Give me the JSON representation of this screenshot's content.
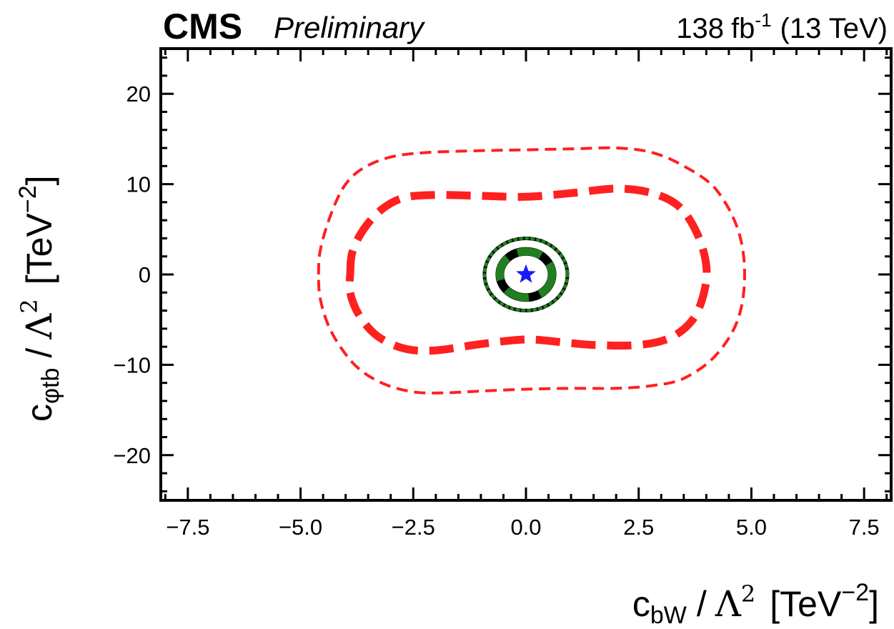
{
  "header": {
    "experiment": "CMS",
    "status": "Preliminary",
    "lumi_value": "138",
    "lumi_unit": "fb",
    "lumi_exp": "-1",
    "energy": "(13 TeV)"
  },
  "chart_data": {
    "type": "contour",
    "title": "",
    "xlabel": "c_bW / Λ^2 [TeV^-2]",
    "ylabel": "c_φtb / Λ^2 [TeV^-2]",
    "xlabel_parts": {
      "c": "c",
      "sub": "bW",
      "sep": "/",
      "lambda": "Λ",
      "pow": "2",
      "unit": "[TeV",
      "unit_exp": "−2",
      "close": "]"
    },
    "ylabel_parts": {
      "c": "c",
      "sub": "φtb",
      "sep": "/",
      "lambda": "Λ",
      "pow": "2",
      "unit": "[TeV",
      "unit_exp": "−2",
      "close": "]"
    },
    "xlim": [
      -8.1,
      8.1
    ],
    "ylim": [
      -25,
      25
    ],
    "xticks": [
      -7.5,
      -5.0,
      -2.5,
      0.0,
      2.5,
      5.0,
      7.5
    ],
    "xtick_labels": [
      "−7.5",
      "−5.0",
      "−2.5",
      "0.0",
      "2.5",
      "5.0",
      "7.5"
    ],
    "yticks": [
      -20,
      -10,
      0,
      10,
      20
    ],
    "ytick_labels": [
      "−20",
      "−10",
      "0",
      "10",
      "20"
    ],
    "best_fit": {
      "x": 0.0,
      "y": 0.0,
      "marker": "star",
      "color": "#1a1aff"
    },
    "series": [
      {
        "name": "red-95cl-outer",
        "color": "#ff2020",
        "style": "dashed-thin",
        "points": [
          [
            -4.6,
            0
          ],
          [
            -4.55,
            3
          ],
          [
            -4.3,
            7
          ],
          [
            -4.0,
            10
          ],
          [
            -3.6,
            11.8
          ],
          [
            -3.0,
            13.0
          ],
          [
            -2.2,
            13.5
          ],
          [
            -1.0,
            13.7
          ],
          [
            0.0,
            13.8
          ],
          [
            1.0,
            13.9
          ],
          [
            2.0,
            14.0
          ],
          [
            2.8,
            13.5
          ],
          [
            3.5,
            12.0
          ],
          [
            4.2,
            9.5
          ],
          [
            4.7,
            5.0
          ],
          [
            4.85,
            0
          ],
          [
            4.7,
            -5.0
          ],
          [
            4.2,
            -9.0
          ],
          [
            3.5,
            -11.5
          ],
          [
            2.8,
            -12.3
          ],
          [
            2.0,
            -12.6
          ],
          [
            1.0,
            -12.6
          ],
          [
            0.0,
            -12.7
          ],
          [
            -1.0,
            -12.9
          ],
          [
            -1.8,
            -13.1
          ],
          [
            -2.5,
            -13.0
          ],
          [
            -3.2,
            -12.0
          ],
          [
            -3.8,
            -10.0
          ],
          [
            -4.3,
            -6.5
          ],
          [
            -4.55,
            -3.0
          ]
        ]
      },
      {
        "name": "red-68cl-inner",
        "color": "#ff2020",
        "style": "dashed-thick",
        "points": [
          [
            -3.9,
            0
          ],
          [
            -3.85,
            2.5
          ],
          [
            -3.6,
            5.0
          ],
          [
            -3.2,
            7.2
          ],
          [
            -2.7,
            8.5
          ],
          [
            -2.0,
            8.8
          ],
          [
            -1.0,
            8.7
          ],
          [
            0.0,
            8.6
          ],
          [
            1.0,
            9.0
          ],
          [
            2.0,
            9.5
          ],
          [
            2.8,
            9.0
          ],
          [
            3.4,
            7.5
          ],
          [
            3.8,
            4.5
          ],
          [
            4.0,
            1.0
          ],
          [
            3.95,
            -2.0
          ],
          [
            3.7,
            -5.0
          ],
          [
            3.2,
            -7.0
          ],
          [
            2.5,
            -7.8
          ],
          [
            1.5,
            -7.8
          ],
          [
            0.8,
            -7.5
          ],
          [
            0.0,
            -7.2
          ],
          [
            -1.0,
            -7.7
          ],
          [
            -2.0,
            -8.4
          ],
          [
            -2.7,
            -8.2
          ],
          [
            -3.3,
            -6.8
          ],
          [
            -3.7,
            -4.5
          ],
          [
            -3.9,
            -2.0
          ]
        ]
      },
      {
        "name": "black-95cl",
        "color": "#000000",
        "style": "solid",
        "ellipse": {
          "cx": 0.0,
          "cy": 0.0,
          "rx": 0.92,
          "ry": 4.0
        }
      },
      {
        "name": "green-95cl",
        "color": "#208020",
        "style": "dotted",
        "ellipse": {
          "cx": 0.0,
          "cy": 0.0,
          "rx": 0.92,
          "ry": 4.0
        }
      },
      {
        "name": "black-68cl",
        "color": "#000000",
        "style": "solid-thick",
        "ellipse": {
          "cx": 0.0,
          "cy": 0.0,
          "rx": 0.58,
          "ry": 2.55
        }
      },
      {
        "name": "green-68cl",
        "color": "#208020",
        "style": "dashed-thick",
        "ellipse": {
          "cx": 0.0,
          "cy": 0.0,
          "rx": 0.58,
          "ry": 2.55
        }
      }
    ]
  }
}
